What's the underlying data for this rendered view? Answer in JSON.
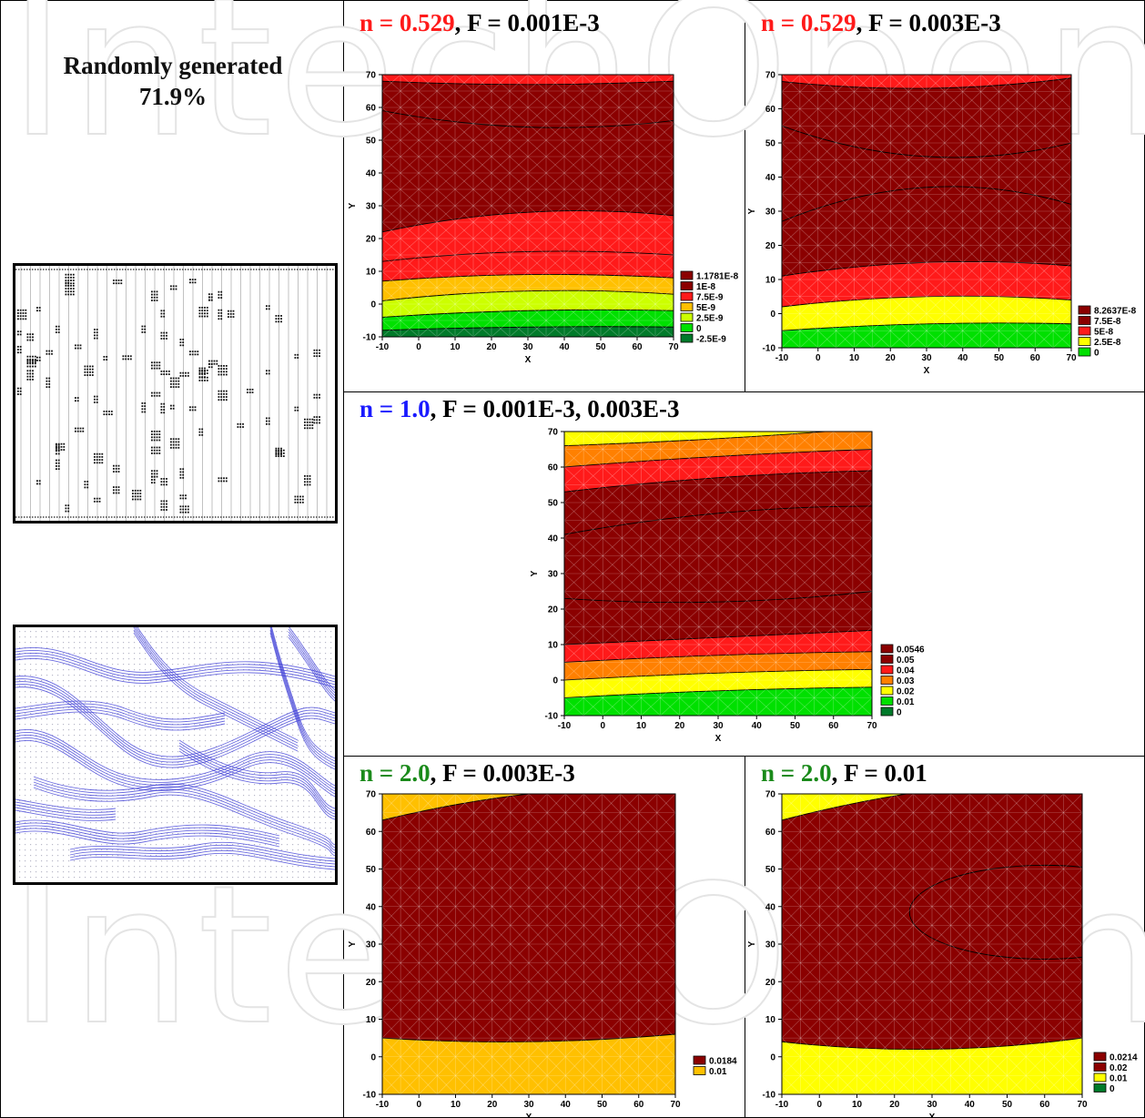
{
  "watermark": "IntechOpen",
  "left_title": {
    "line1": "Randomly generated",
    "line2": "71.9%"
  },
  "colors": {
    "red_title": "#ff1a1a",
    "blue_title": "#1a1aff",
    "green_title": "#1a8a1a",
    "dark": "#8b0000",
    "red": "#ff1a1a",
    "orange": "#ff8000",
    "yelloworange": "#ffc000",
    "yellow": "#ffff00",
    "lime": "#aaff00",
    "green": "#00e000",
    "darkgreen": "#007a2a",
    "flow": "#3b3bd6"
  },
  "panels": [
    {
      "n_label": "n = ",
      "n_value": "0.529",
      "n_color": "red",
      "rest": ",  F = 0.001E-3"
    },
    {
      "n_label": "n = ",
      "n_value": "0.529",
      "n_color": "red",
      "rest": ",  F = 0.003E-3"
    },
    {
      "n_label": "n = ",
      "n_value": "1.0",
      "n_color": "blue",
      "rest": ",  F = 0.001E-3, 0.003E-3"
    },
    {
      "n_label": "n = ",
      "n_value": "2.0",
      "n_color": "green",
      "rest": ",  F = 0.003E-3"
    },
    {
      "n_label": "n = ",
      "n_value": "2.0",
      "n_color": "green",
      "rest": ", F = 0.01"
    }
  ],
  "chart_data": [
    {
      "type": "contour",
      "xlabel": "X",
      "ylabel": "Y",
      "xlim": [
        -10,
        70
      ],
      "ylim": [
        -10,
        70
      ],
      "xticks": [
        "-10",
        "0",
        "10",
        "20",
        "30",
        "40",
        "50",
        "60",
        "70"
      ],
      "yticks": [
        "-10",
        "0",
        "10",
        "20",
        "30",
        "40",
        "50",
        "60",
        "70"
      ],
      "legend": [
        {
          "label": "1.1781E-8",
          "color": "#8b0000"
        },
        {
          "label": "1E-8",
          "color": "#8b0000"
        },
        {
          "label": "7.5E-9",
          "color": "#ff1a1a"
        },
        {
          "label": "5E-9",
          "color": "#ffc000"
        },
        {
          "label": "2.5E-9",
          "color": "#ccff00"
        },
        {
          "label": "0",
          "color": "#00e000"
        },
        {
          "label": "-2.5E-9",
          "color": "#007a2a"
        }
      ],
      "bands": [
        {
          "color": "#007a2a",
          "left": -10,
          "mid": -10,
          "right": -10
        },
        {
          "color": "#00e000",
          "left": -8,
          "mid": -7,
          "right": -7
        },
        {
          "color": "#ccff00",
          "left": -4,
          "mid": -2,
          "right": -2
        },
        {
          "color": "#ffc000",
          "left": 1,
          "mid": 4,
          "right": 3
        },
        {
          "color": "#ff1a1a",
          "left": 7,
          "mid": 9,
          "right": 8
        },
        {
          "color": "#ff1a1a",
          "left": 13,
          "mid": 16,
          "right": 15
        },
        {
          "color": "#8b0000",
          "left": 22,
          "mid": 28,
          "right": 27
        },
        {
          "color": "#8b0000",
          "left": 59,
          "mid": 54,
          "right": 56
        },
        {
          "color": "#ff1a1a",
          "left": 68,
          "mid": 67,
          "right": 68
        }
      ]
    },
    {
      "type": "contour",
      "xlabel": "X",
      "ylabel": "Y",
      "xlim": [
        -10,
        70
      ],
      "ylim": [
        -10,
        70
      ],
      "xticks": [
        "-10",
        "0",
        "10",
        "20",
        "30",
        "40",
        "50",
        "60",
        "70"
      ],
      "yticks": [
        "-10",
        "0",
        "10",
        "20",
        "30",
        "40",
        "50",
        "60",
        "70"
      ],
      "legend": [
        {
          "label": "8.2637E-8",
          "color": "#8b0000"
        },
        {
          "label": "7.5E-8",
          "color": "#8b0000"
        },
        {
          "label": "5E-8",
          "color": "#ff1a1a"
        },
        {
          "label": "2.5E-8",
          "color": "#ffff00"
        },
        {
          "label": "0",
          "color": "#00e000"
        }
      ],
      "bands": [
        {
          "color": "#00e000",
          "left": -10,
          "mid": -10,
          "right": -10
        },
        {
          "color": "#ffff00",
          "left": -5,
          "mid": -3,
          "right": -3
        },
        {
          "color": "#ff1a1a",
          "left": 2,
          "mid": 5,
          "right": 4
        },
        {
          "color": "#8b0000",
          "left": 11,
          "mid": 15,
          "right": 14
        },
        {
          "color": "#8b0000",
          "left": 27,
          "mid": 37,
          "right": 32
        },
        {
          "color": "#8b0000",
          "left": 55,
          "mid": 46,
          "right": 50
        },
        {
          "color": "#ff1a1a",
          "left": 68,
          "mid": 66,
          "right": 69
        }
      ]
    },
    {
      "type": "contour",
      "xlabel": "X",
      "ylabel": "Y",
      "xlim": [
        -10,
        70
      ],
      "ylim": [
        -10,
        70
      ],
      "xticks": [
        "-10",
        "0",
        "10",
        "20",
        "30",
        "40",
        "50",
        "60",
        "70"
      ],
      "yticks": [
        "-10",
        "0",
        "10",
        "20",
        "30",
        "40",
        "50",
        "60",
        "70"
      ],
      "legend": [
        {
          "label": "0.0546",
          "color": "#8b0000"
        },
        {
          "label": "0.05",
          "color": "#8b0000"
        },
        {
          "label": "0.04",
          "color": "#ff1a1a"
        },
        {
          "label": "0.03",
          "color": "#ff8000"
        },
        {
          "label": "0.02",
          "color": "#ffff00"
        },
        {
          "label": "0.01",
          "color": "#00e000"
        },
        {
          "label": "0",
          "color": "#007a2a"
        }
      ],
      "bands": [
        {
          "color": "#00e000",
          "left": -10,
          "mid": -10,
          "right": -10
        },
        {
          "color": "#ffff00",
          "left": -5,
          "mid": -3,
          "right": -2
        },
        {
          "color": "#ff8000",
          "left": 0,
          "mid": 2,
          "right": 3
        },
        {
          "color": "#ff1a1a",
          "left": 5,
          "mid": 7,
          "right": 8
        },
        {
          "color": "#8b0000",
          "left": 10,
          "mid": 12,
          "right": 14
        },
        {
          "color": "#8b0000",
          "left": 23,
          "mid": 22,
          "right": 25
        },
        {
          "color": "#8b0000",
          "left": 41,
          "mid": 47,
          "right": 49
        },
        {
          "color": "#ff1a1a",
          "left": 53,
          "mid": 57,
          "right": 59
        },
        {
          "color": "#ff8000",
          "left": 60,
          "mid": 63,
          "right": 65
        },
        {
          "color": "#ffff00",
          "left": 66,
          "mid": 68,
          "right": 71
        }
      ]
    },
    {
      "type": "contour",
      "xlabel": "X",
      "ylabel": "Y",
      "xlim": [
        -10,
        70
      ],
      "ylim": [
        -10,
        70
      ],
      "xticks": [
        "-10",
        "0",
        "10",
        "20",
        "30",
        "40",
        "50",
        "60",
        "70"
      ],
      "yticks": [
        "-10",
        "0",
        "10",
        "20",
        "30",
        "40",
        "50",
        "60",
        "70"
      ],
      "legend": [
        {
          "label": "0.0184",
          "color": "#8b0000"
        },
        {
          "label": "0.01",
          "color": "#ffc000"
        }
      ],
      "bands": [
        {
          "color": "#ffc000",
          "left": -10,
          "mid": -10,
          "right": -10
        },
        {
          "color": "#8b0000",
          "left": 5,
          "mid": 4,
          "right": 6
        },
        {
          "color": "#ffc000",
          "left": 63,
          "mid": 70,
          "right": 72
        }
      ]
    },
    {
      "type": "contour",
      "xlabel": "X",
      "ylabel": "Y",
      "xlim": [
        -10,
        70
      ],
      "ylim": [
        -10,
        70
      ],
      "xticks": [
        "-10",
        "0",
        "10",
        "20",
        "30",
        "40",
        "50",
        "60",
        "70"
      ],
      "yticks": [
        "-10",
        "0",
        "10",
        "20",
        "30",
        "40",
        "50",
        "60",
        "70"
      ],
      "legend": [
        {
          "label": "0.0214",
          "color": "#8b0000"
        },
        {
          "label": "0.02",
          "color": "#8b0000"
        },
        {
          "label": "0.01",
          "color": "#ffff00"
        },
        {
          "label": "0",
          "color": "#007a2a"
        }
      ],
      "bands": [
        {
          "color": "#ffff00",
          "left": -10,
          "mid": -10,
          "right": -10
        },
        {
          "color": "#8b0000",
          "left": 4,
          "mid": 2,
          "right": 5
        },
        {
          "color": "#ffff00",
          "left": 63,
          "mid": 71,
          "right": 74
        }
      ]
    }
  ]
}
